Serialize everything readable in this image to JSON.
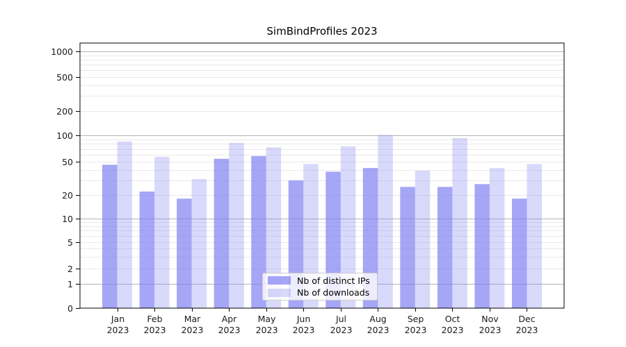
{
  "title": "SimBindProfiles 2023",
  "chart_data": {
    "type": "bar",
    "title": "SimBindProfiles 2023",
    "x_year": "2023",
    "categories": [
      "Jan",
      "Feb",
      "Mar",
      "Apr",
      "May",
      "Jun",
      "Jul",
      "Aug",
      "Sep",
      "Oct",
      "Nov",
      "Dec"
    ],
    "series": [
      {
        "name": "Nb of distinct IPs",
        "color": "rgba(128,128,242,0.7)",
        "values": [
          46,
          22,
          18,
          54,
          58,
          30,
          38,
          42,
          25,
          25,
          27,
          18
        ]
      },
      {
        "name": "Nb of downloads",
        "color": "rgba(128,128,242,0.3)",
        "values": [
          85,
          57,
          31,
          82,
          73,
          47,
          75,
          101,
          39,
          93,
          42,
          47
        ]
      }
    ],
    "y_ticks": [
      0,
      1,
      2,
      5,
      10,
      20,
      50,
      100,
      200,
      500,
      1000
    ],
    "yscale": "symlog",
    "ylim": [
      0,
      1200
    ],
    "grid": true,
    "legend_position": "lower center"
  },
  "colors": {
    "grid_major": "#b3b3b3",
    "grid_minor": "#e9e9e9",
    "axis": "#000000",
    "text": "#1a1a1a"
  }
}
